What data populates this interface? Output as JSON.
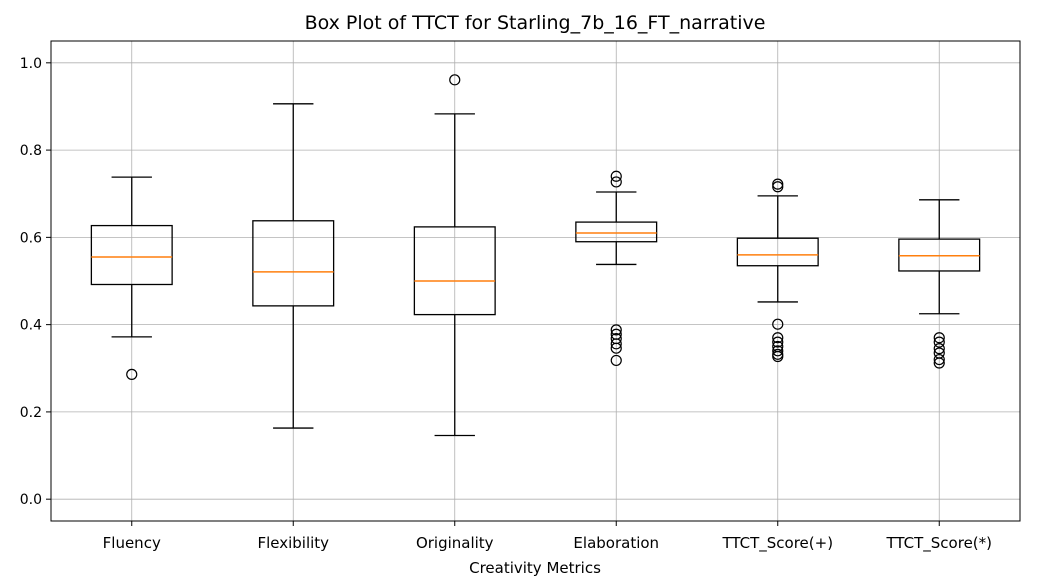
{
  "chart_data": {
    "type": "box",
    "title": "Box Plot of TTCT for Starling_7b_16_FT_narrative",
    "xlabel": "Creativity Metrics",
    "ylabel": "",
    "ylim": [
      -0.05,
      1.05
    ],
    "yticks": [
      0.0,
      0.2,
      0.4,
      0.6,
      0.8,
      1.0
    ],
    "ytick_labels": [
      "0.0",
      "0.2",
      "0.4",
      "0.6",
      "0.8",
      "1.0"
    ],
    "grid": true,
    "colors": {
      "box": "#000000",
      "median": "#ff7f0e",
      "grid": "#b0b0b0"
    },
    "categories": [
      "Fluency",
      "Flexibility",
      "Originality",
      "Elaboration",
      "TTCT_Score(+)",
      "TTCT_Score(*)"
    ],
    "boxes": [
      {
        "label": "Fluency",
        "whisker_low": 0.372,
        "q1": 0.492,
        "median": 0.555,
        "q3": 0.627,
        "whisker_high": 0.738,
        "outliers": [
          0.286
        ]
      },
      {
        "label": "Flexibility",
        "whisker_low": 0.163,
        "q1": 0.443,
        "median": 0.521,
        "q3": 0.638,
        "whisker_high": 0.906,
        "outliers": []
      },
      {
        "label": "Originality",
        "whisker_low": 0.146,
        "q1": 0.423,
        "median": 0.5,
        "q3": 0.624,
        "whisker_high": 0.883,
        "outliers": [
          0.961
        ]
      },
      {
        "label": "Elaboration",
        "whisker_low": 0.538,
        "q1": 0.59,
        "median": 0.61,
        "q3": 0.635,
        "whisker_high": 0.704,
        "outliers": [
          0.74,
          0.727,
          0.388,
          0.378,
          0.368,
          0.356,
          0.346,
          0.318
        ]
      },
      {
        "label": "TTCT_Score(+)",
        "whisker_low": 0.452,
        "q1": 0.535,
        "median": 0.56,
        "q3": 0.598,
        "whisker_high": 0.695,
        "outliers": [
          0.722,
          0.716,
          0.401,
          0.37,
          0.36,
          0.35,
          0.34,
          0.332,
          0.327
        ]
      },
      {
        "label": "TTCT_Score(*)",
        "whisker_low": 0.425,
        "q1": 0.523,
        "median": 0.558,
        "q3": 0.596,
        "whisker_high": 0.686,
        "outliers": [
          0.37,
          0.36,
          0.345,
          0.335,
          0.32,
          0.312
        ]
      }
    ]
  }
}
